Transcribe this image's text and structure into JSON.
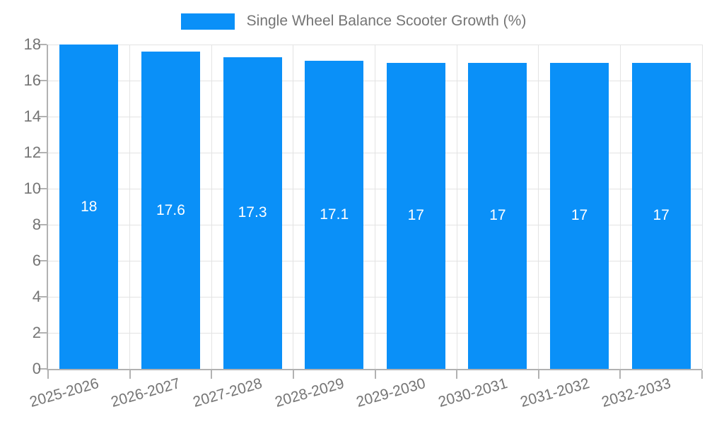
{
  "legend": {
    "label": "Single Wheel Balance Scooter Growth (%)"
  },
  "colors": {
    "bar": "#0a90f8",
    "grid": "#e3e3e3",
    "axis": "#b2b2b2",
    "text": "#757575",
    "bar_label": "#ffffff"
  },
  "chart_data": {
    "type": "bar",
    "title": "Single Wheel Balance Scooter Growth (%)",
    "categories": [
      "2025-2026",
      "2026-2027",
      "2027-2028",
      "2028-2029",
      "2029-2030",
      "2030-2031",
      "2031-2032",
      "2032-2033"
    ],
    "values": [
      18,
      17.6,
      17.3,
      17.1,
      17,
      17,
      17,
      17
    ],
    "value_labels": [
      "18",
      "17.6",
      "17.3",
      "17.1",
      "17",
      "17",
      "17",
      "17"
    ],
    "xlabel": "",
    "ylabel": "",
    "ylim": [
      0,
      18
    ],
    "ytick_step": 2,
    "ytick_labels": [
      "0",
      "2",
      "4",
      "6",
      "8",
      "10",
      "12",
      "14",
      "16",
      "18"
    ],
    "grid": true,
    "legend_position": "top",
    "value_label_position": "inside-center"
  }
}
